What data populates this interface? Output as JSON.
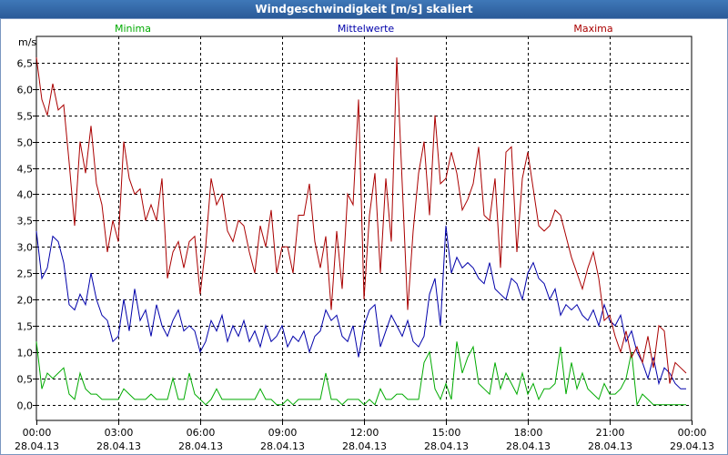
{
  "window": {
    "title": "Windgeschwindigkeit [m/s] skaliert"
  },
  "chart_data": {
    "type": "line",
    "ylabel": "m/s",
    "ylim": [
      -0.3,
      7.0
    ],
    "y_ticks": [
      0.0,
      0.5,
      1.0,
      1.5,
      2.0,
      2.5,
      3.0,
      3.5,
      4.0,
      4.5,
      5.0,
      5.5,
      6.0,
      6.5
    ],
    "y_tick_labels": [
      "0,0",
      "0,5",
      "1,0",
      "1,5",
      "2,0",
      "2,5",
      "3,0",
      "3,5",
      "4,0",
      "4,5",
      "5,0",
      "5,5",
      "6,0",
      "6,5"
    ],
    "xlim": [
      0,
      24
    ],
    "x_ticks": [
      {
        "time": "00:00",
        "date": "28.04.13"
      },
      {
        "time": "03:00",
        "date": "28.04.13"
      },
      {
        "time": "06:00",
        "date": "28.04.13"
      },
      {
        "time": "09:00",
        "date": "28.04.13"
      },
      {
        "time": "12:00",
        "date": "28.04.13"
      },
      {
        "time": "15:00",
        "date": "28.04.13"
      },
      {
        "time": "18:00",
        "date": "28.04.13"
      },
      {
        "time": "21:00",
        "date": "28.04.13"
      },
      {
        "time": "00:00",
        "date": "29.04.13"
      }
    ],
    "grid": true,
    "series": [
      {
        "name": "Minima",
        "color": "#00aa00",
        "x_hours": [
          0,
          0.2,
          0.4,
          0.6,
          0.8,
          1.0,
          1.2,
          1.4,
          1.6,
          1.8,
          2.0,
          2.2,
          2.4,
          2.6,
          2.8,
          3.0,
          3.2,
          3.4,
          3.6,
          3.8,
          4.0,
          4.2,
          4.4,
          4.6,
          4.8,
          5.0,
          5.2,
          5.4,
          5.6,
          5.8,
          6.0,
          6.2,
          6.4,
          6.6,
          6.8,
          7.0,
          7.2,
          7.4,
          7.6,
          7.8,
          8.0,
          8.2,
          8.4,
          8.6,
          8.8,
          9.0,
          9.2,
          9.4,
          9.6,
          9.8,
          10.0,
          10.2,
          10.4,
          10.6,
          10.8,
          11.0,
          11.2,
          11.4,
          11.6,
          11.8,
          12.0,
          12.2,
          12.4,
          12.6,
          12.8,
          13.0,
          13.2,
          13.4,
          13.6,
          13.8,
          14.0,
          14.2,
          14.4,
          14.6,
          14.8,
          15.0,
          15.2,
          15.4,
          15.6,
          15.8,
          16.0,
          16.2,
          16.4,
          16.6,
          16.8,
          17.0,
          17.2,
          17.4,
          17.6,
          17.8,
          18.0,
          18.2,
          18.4,
          18.6,
          18.8,
          19.0,
          19.2,
          19.4,
          19.6,
          19.8,
          20.0,
          20.2,
          20.4,
          20.6,
          20.8,
          21.0,
          21.2,
          21.4,
          21.6,
          21.8,
          22.0,
          22.2,
          22.4,
          22.6,
          22.8,
          23.0,
          23.2,
          23.4,
          23.6,
          23.8
        ],
        "values": [
          1.2,
          0.3,
          0.6,
          0.5,
          0.6,
          0.7,
          0.2,
          0.1,
          0.6,
          0.3,
          0.2,
          0.2,
          0.1,
          0.1,
          0.1,
          0.1,
          0.3,
          0.2,
          0.1,
          0.1,
          0.1,
          0.2,
          0.1,
          0.1,
          0.1,
          0.5,
          0.1,
          0.1,
          0.6,
          0.2,
          0.1,
          0.0,
          0.1,
          0.3,
          0.1,
          0.1,
          0.1,
          0.1,
          0.1,
          0.1,
          0.1,
          0.3,
          0.1,
          0.1,
          0.0,
          0.0,
          0.1,
          0.0,
          0.1,
          0.1,
          0.1,
          0.1,
          0.1,
          0.6,
          0.1,
          0.1,
          0.0,
          0.1,
          0.1,
          0.1,
          0.0,
          0.1,
          0.0,
          0.3,
          0.1,
          0.1,
          0.2,
          0.2,
          0.1,
          0.1,
          0.1,
          0.8,
          1.0,
          0.3,
          0.1,
          0.4,
          0.1,
          1.2,
          0.6,
          0.9,
          1.1,
          0.4,
          0.3,
          0.2,
          0.8,
          0.3,
          0.6,
          0.4,
          0.2,
          0.6,
          0.2,
          0.4,
          0.1,
          0.3,
          0.3,
          0.4,
          1.1,
          0.2,
          0.8,
          0.3,
          0.6,
          0.3,
          0.2,
          0.1,
          0.4,
          0.2,
          0.2,
          0.3,
          0.5,
          1.0,
          0.0,
          0.2,
          0.1,
          0.0,
          0.0,
          0.0,
          0.0,
          0.0,
          0.0,
          0.0
        ]
      },
      {
        "name": "Mittelwerte",
        "color": "#0000aa",
        "x_hours": [
          0,
          0.2,
          0.4,
          0.6,
          0.8,
          1.0,
          1.2,
          1.4,
          1.6,
          1.8,
          2.0,
          2.2,
          2.4,
          2.6,
          2.8,
          3.0,
          3.2,
          3.4,
          3.6,
          3.8,
          4.0,
          4.2,
          4.4,
          4.6,
          4.8,
          5.0,
          5.2,
          5.4,
          5.6,
          5.8,
          6.0,
          6.2,
          6.4,
          6.6,
          6.8,
          7.0,
          7.2,
          7.4,
          7.6,
          7.8,
          8.0,
          8.2,
          8.4,
          8.6,
          8.8,
          9.0,
          9.2,
          9.4,
          9.6,
          9.8,
          10.0,
          10.2,
          10.4,
          10.6,
          10.8,
          11.0,
          11.2,
          11.4,
          11.6,
          11.8,
          12.0,
          12.2,
          12.4,
          12.6,
          12.8,
          13.0,
          13.2,
          13.4,
          13.6,
          13.8,
          14.0,
          14.2,
          14.4,
          14.6,
          14.8,
          15.0,
          15.2,
          15.4,
          15.6,
          15.8,
          16.0,
          16.2,
          16.4,
          16.6,
          16.8,
          17.0,
          17.2,
          17.4,
          17.6,
          17.8,
          18.0,
          18.2,
          18.4,
          18.6,
          18.8,
          19.0,
          19.2,
          19.4,
          19.6,
          19.8,
          20.0,
          20.2,
          20.4,
          20.6,
          20.8,
          21.0,
          21.2,
          21.4,
          21.6,
          21.8,
          22.0,
          22.2,
          22.4,
          22.6,
          22.8,
          23.0,
          23.2,
          23.4,
          23.6,
          23.8
        ],
        "values": [
          3.3,
          2.4,
          2.6,
          3.2,
          3.1,
          2.7,
          1.9,
          1.8,
          2.1,
          1.9,
          2.5,
          2.0,
          1.7,
          1.6,
          1.2,
          1.3,
          2.0,
          1.4,
          2.2,
          1.6,
          1.8,
          1.3,
          1.9,
          1.5,
          1.3,
          1.6,
          1.8,
          1.4,
          1.5,
          1.4,
          1.0,
          1.2,
          1.6,
          1.4,
          1.7,
          1.2,
          1.5,
          1.3,
          1.6,
          1.2,
          1.4,
          1.1,
          1.5,
          1.2,
          1.3,
          1.5,
          1.1,
          1.3,
          1.2,
          1.4,
          1.0,
          1.3,
          1.4,
          1.8,
          1.6,
          1.7,
          1.3,
          1.2,
          1.5,
          0.9,
          1.5,
          1.8,
          1.9,
          1.1,
          1.4,
          1.7,
          1.5,
          1.3,
          1.6,
          1.2,
          1.1,
          1.3,
          2.1,
          2.4,
          1.5,
          3.4,
          2.5,
          2.8,
          2.6,
          2.7,
          2.6,
          2.4,
          2.3,
          2.7,
          2.2,
          2.1,
          2.0,
          2.4,
          2.3,
          2.0,
          2.5,
          2.7,
          2.4,
          2.3,
          2.0,
          2.2,
          1.7,
          1.9,
          1.8,
          1.9,
          1.7,
          1.6,
          1.8,
          1.5,
          1.9,
          1.6,
          1.5,
          1.7,
          1.2,
          1.4,
          1.0,
          0.8,
          0.5,
          0.9,
          0.4,
          0.7,
          0.6,
          0.4,
          0.3,
          0.3
        ]
      },
      {
        "name": "Maxima",
        "color": "#aa0000",
        "x_hours": [
          0,
          0.2,
          0.4,
          0.6,
          0.8,
          1.0,
          1.2,
          1.4,
          1.6,
          1.8,
          2.0,
          2.2,
          2.4,
          2.6,
          2.8,
          3.0,
          3.2,
          3.4,
          3.6,
          3.8,
          4.0,
          4.2,
          4.4,
          4.6,
          4.8,
          5.0,
          5.2,
          5.4,
          5.6,
          5.8,
          6.0,
          6.2,
          6.4,
          6.6,
          6.8,
          7.0,
          7.2,
          7.4,
          7.6,
          7.8,
          8.0,
          8.2,
          8.4,
          8.6,
          8.8,
          9.0,
          9.2,
          9.4,
          9.6,
          9.8,
          10.0,
          10.2,
          10.4,
          10.6,
          10.8,
          11.0,
          11.2,
          11.4,
          11.6,
          11.8,
          12.0,
          12.2,
          12.4,
          12.6,
          12.8,
          13.0,
          13.2,
          13.4,
          13.6,
          13.8,
          14.0,
          14.2,
          14.4,
          14.6,
          14.8,
          15.0,
          15.2,
          15.4,
          15.6,
          15.8,
          16.0,
          16.2,
          16.4,
          16.6,
          16.8,
          17.0,
          17.2,
          17.4,
          17.6,
          17.8,
          18.0,
          18.2,
          18.4,
          18.6,
          18.8,
          19.0,
          19.2,
          19.4,
          19.6,
          19.8,
          20.0,
          20.2,
          20.4,
          20.6,
          20.8,
          21.0,
          21.2,
          21.4,
          21.6,
          21.8,
          22.0,
          22.2,
          22.4,
          22.6,
          22.8,
          23.0,
          23.2,
          23.4,
          23.6,
          23.8
        ],
        "values": [
          6.6,
          5.8,
          5.5,
          6.1,
          5.6,
          5.7,
          4.6,
          3.4,
          5.0,
          4.4,
          5.3,
          4.2,
          3.8,
          2.9,
          3.5,
          3.1,
          5.0,
          4.3,
          4.0,
          4.1,
          3.5,
          3.8,
          3.5,
          4.3,
          2.4,
          2.9,
          3.1,
          2.6,
          3.1,
          3.2,
          2.1,
          3.0,
          4.3,
          3.8,
          4.0,
          3.3,
          3.1,
          3.5,
          3.4,
          2.9,
          2.5,
          3.4,
          3.0,
          3.7,
          2.5,
          3.0,
          3.0,
          2.5,
          3.6,
          3.6,
          4.2,
          3.1,
          2.6,
          3.2,
          1.8,
          3.3,
          2.2,
          4.0,
          3.8,
          5.8,
          2.0,
          3.6,
          4.4,
          2.5,
          4.3,
          3.1,
          6.6,
          4.2,
          1.8,
          3.3,
          4.4,
          5.0,
          3.6,
          5.5,
          4.2,
          4.3,
          4.8,
          4.4,
          3.7,
          3.9,
          4.2,
          4.9,
          3.6,
          3.5,
          4.3,
          2.6,
          4.8,
          4.9,
          2.9,
          4.3,
          4.8,
          4.1,
          3.4,
          3.3,
          3.4,
          3.7,
          3.6,
          3.2,
          2.8,
          2.5,
          2.2,
          2.6,
          2.9,
          2.4,
          1.6,
          1.7,
          1.3,
          1.0,
          1.4,
          0.9,
          1.1,
          0.8,
          1.3,
          0.7,
          1.5,
          1.4,
          0.4,
          0.8,
          0.7,
          0.6
        ]
      }
    ]
  }
}
